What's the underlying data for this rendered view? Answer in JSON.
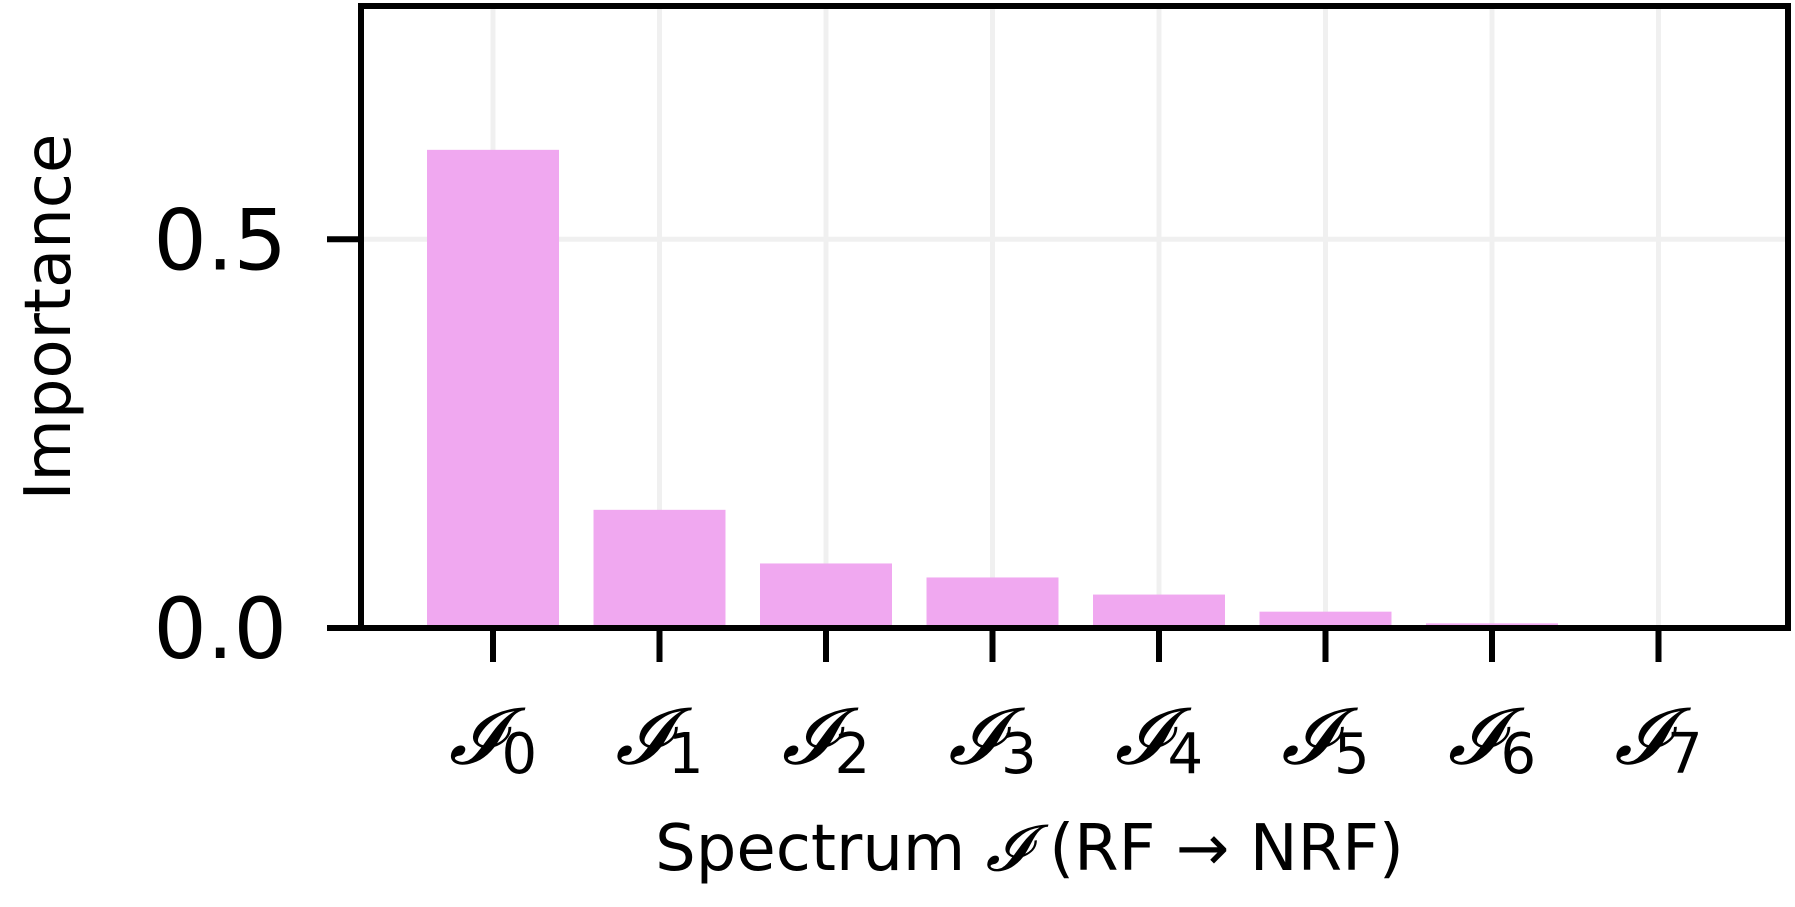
{
  "chart_data": {
    "type": "bar",
    "categories": [
      "0",
      "1",
      "2",
      "3",
      "4",
      "5",
      "6",
      "7"
    ],
    "category_symbol": "𝓘",
    "values": [
      0.615,
      0.152,
      0.083,
      0.065,
      0.043,
      0.021,
      0.006,
      0.0
    ],
    "ylabel": "Importance",
    "xlabel": {
      "prefix": "Spectrum",
      "symbol": "𝓘",
      "suffix": "(RF → NRF)"
    },
    "ylim": [
      0.0,
      0.8
    ],
    "yticks": [
      {
        "value": 0.0,
        "label": "0.0"
      },
      {
        "value": 0.5,
        "label": "0.5"
      }
    ],
    "grid": true,
    "legend": "none",
    "colors": {
      "bar": "#f0a8f0",
      "grid": "#f0f0f0",
      "axis": "#000000"
    }
  }
}
